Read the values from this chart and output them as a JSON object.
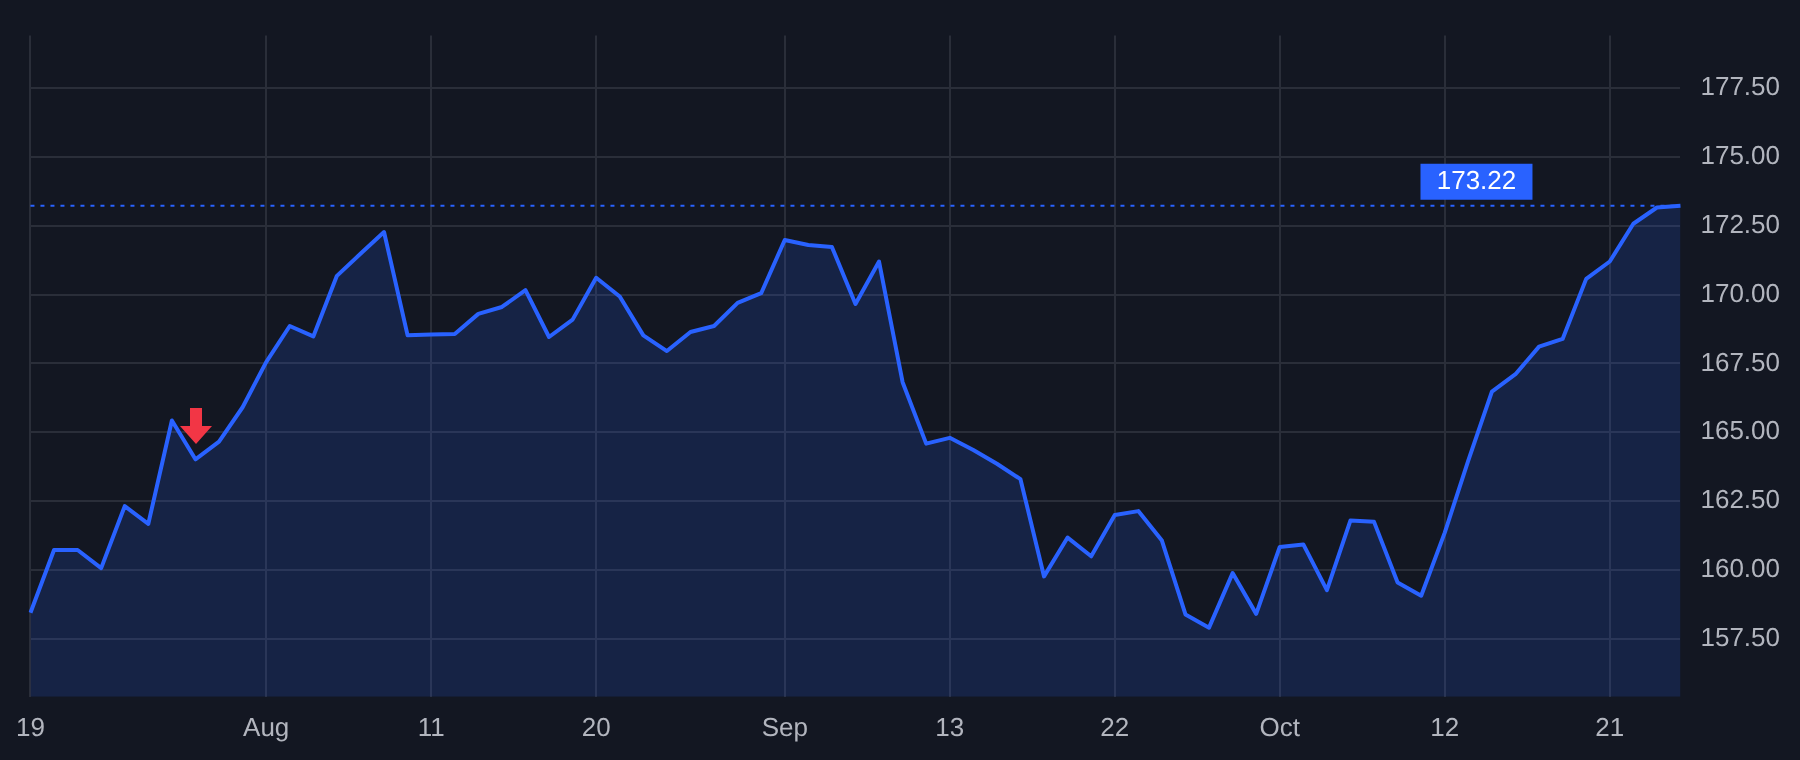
{
  "chart_data": {
    "type": "area",
    "categories": [
      "19",
      null,
      null,
      null,
      null,
      null,
      null,
      null,
      null,
      null,
      "Aug",
      null,
      null,
      null,
      null,
      null,
      null,
      "11",
      null,
      null,
      null,
      null,
      null,
      null,
      "20",
      null,
      null,
      null,
      null,
      null,
      null,
      null,
      "Sep",
      null,
      null,
      null,
      null,
      null,
      null,
      "13",
      null,
      null,
      null,
      null,
      null,
      null,
      "22",
      null,
      null,
      null,
      null,
      null,
      null,
      "Oct",
      null,
      null,
      null,
      null,
      null,
      null,
      "12",
      null,
      null,
      null,
      null,
      null,
      null,
      "21",
      null,
      null,
      null
    ],
    "series": [
      {
        "color": "#2962ff",
        "values": [
          158.45,
          160.73,
          160.73,
          160.07,
          162.32,
          161.68,
          165.43,
          164.02,
          164.66,
          165.91,
          167.55,
          168.86,
          168.48,
          170.68,
          171.48,
          172.27,
          168.52,
          168.55,
          168.57,
          169.3,
          169.55,
          170.16,
          168.46,
          169.09,
          170.61,
          169.93,
          168.52,
          167.95,
          168.64,
          168.86,
          169.7,
          170.05,
          171.98,
          171.8,
          171.73,
          169.66,
          171.2,
          166.82,
          164.59,
          164.8,
          164.36,
          163.86,
          163.3,
          159.77,
          161.18,
          160.5,
          162.0,
          162.14,
          161.07,
          158.39,
          157.91,
          159.89,
          158.41,
          160.84,
          160.93,
          159.27,
          161.8,
          161.75,
          159.55,
          159.07,
          161.36,
          163.98,
          166.48,
          167.11,
          168.11,
          168.39,
          170.57,
          171.2,
          172.57,
          173.16,
          173.22
        ]
      }
    ],
    "ylim": [
      155.4,
      179.4
    ],
    "yticks": [
      {
        "value": 157.5,
        "label": "157.50"
      },
      {
        "value": 160,
        "label": "160.00"
      },
      {
        "value": 162.5,
        "label": "162.50"
      },
      {
        "value": 165,
        "label": "165.00"
      },
      {
        "value": 167.5,
        "label": "167.50"
      },
      {
        "value": 170,
        "label": "170.00"
      },
      {
        "value": 172.5,
        "label": "172.50"
      },
      {
        "value": 175,
        "label": "175.00"
      },
      {
        "value": 177.5,
        "label": "177.50"
      }
    ],
    "ref_lines": [
      {
        "axis": "y",
        "value": 173.22,
        "label": "173.22",
        "color": "#2962ff",
        "line_style": "dotted"
      }
    ],
    "grid": true,
    "legend": false,
    "marker": "none",
    "line_style": "solid"
  }
}
